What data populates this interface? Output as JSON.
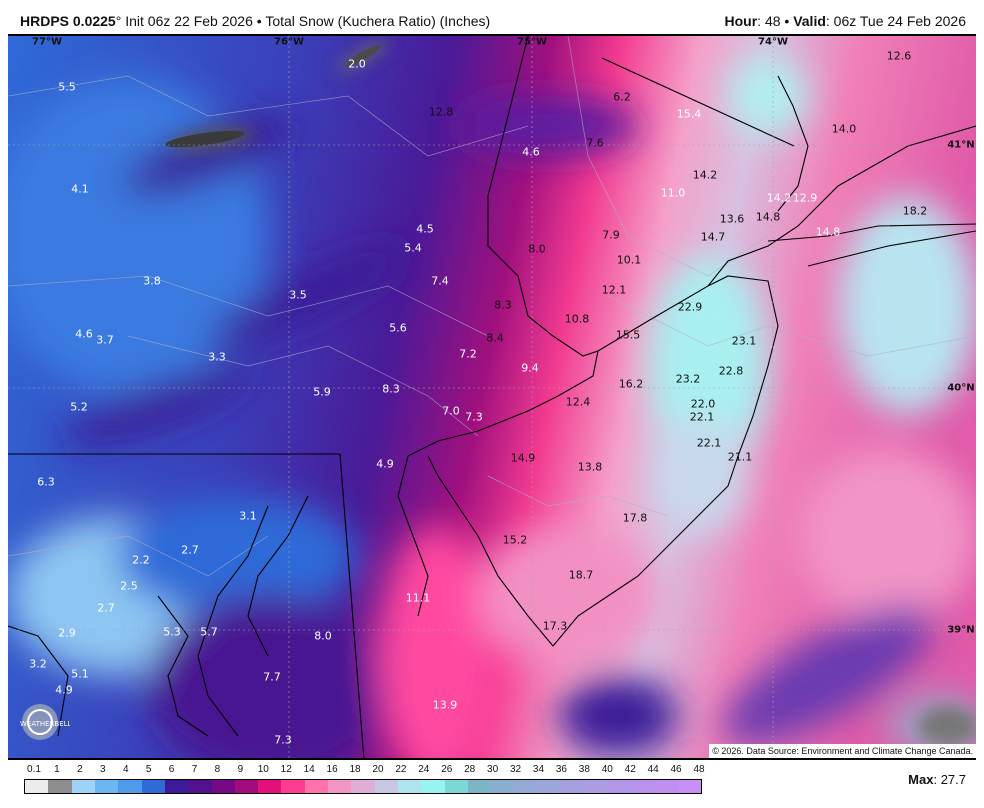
{
  "header": {
    "model": "HRDPS 0.0225",
    "degree": "°",
    "init": "Init 06z 22 Feb 2026",
    "sep": "•",
    "product": "Total Snow (Kuchera Ratio) (Inches)",
    "hour_label": "Hour",
    "hour": "48",
    "valid_label": "Valid",
    "valid": "06z Tue 24 Feb 2026"
  },
  "map": {
    "longitudes": [
      "77°W",
      "76°W",
      "75°W",
      "74°W"
    ],
    "latitudes": [
      "41°N",
      "40°N",
      "39°N"
    ],
    "point_values": [
      "2.0",
      "5.5",
      "12.8",
      "6.2",
      "15.4",
      "12.6",
      "14.0",
      "4.6",
      "7.6",
      "14.2",
      "4.1",
      "11.0",
      "14.2",
      "12.9",
      "18.2",
      "13.6",
      "14.8",
      "4.5",
      "7.9",
      "14.7",
      "14.8",
      "5.4",
      "8.0",
      "10.1",
      "3.8",
      "7.4",
      "12.1",
      "3.5",
      "8.3",
      "22.9",
      "5.6",
      "10.8",
      "4.6",
      "3.7",
      "15.5",
      "23.1",
      "8.4",
      "3.3",
      "7.2",
      "9.4",
      "22.8",
      "16.2",
      "23.2",
      "5.9",
      "8.3",
      "12.4",
      "22.0",
      "5.2",
      "7.0",
      "7.3",
      "22.1",
      "22.1",
      "21.1",
      "14.9",
      "13.8",
      "4.9",
      "6.3",
      "3.1",
      "17.8",
      "15.2",
      "2.2",
      "2.7",
      "2.5",
      "18.7",
      "11.1",
      "2.7",
      "17.3",
      "2.9",
      "5.3",
      "5.7",
      "8.0",
      "3.2",
      "5.1",
      "7.7",
      "4.9",
      "13.9",
      "7.3"
    ],
    "copyright": "© 2026. Data Source: Environment and Climate Change Canada.",
    "logo": "WeatherBELL"
  },
  "colorbar": {
    "labels": [
      "0.1",
      "1",
      "2",
      "3",
      "4",
      "5",
      "6",
      "7",
      "8",
      "9",
      "10",
      "12",
      "14",
      "16",
      "18",
      "20",
      "22",
      "24",
      "26",
      "28",
      "30",
      "32",
      "34",
      "36",
      "38",
      "40",
      "42",
      "44",
      "46",
      "48"
    ],
    "colors": [
      "#ececec",
      "#8c8c8c",
      "#9fd2f7",
      "#6cb6f2",
      "#4c9aea",
      "#2e6bd6",
      "#3a1a98",
      "#52108e",
      "#760a86",
      "#a00c7c",
      "#e4107a",
      "#ff3c92",
      "#ff72aa",
      "#f296c6",
      "#deaed6",
      "#c8c8e4",
      "#b0e2f0",
      "#98f4f0",
      "#7cd8d4",
      "#7ab6c6",
      "#8aaed0",
      "#94aad4",
      "#9ca6da",
      "#a4a0de",
      "#ac9ce2",
      "#b296e8",
      "#b892ec",
      "#c090f0",
      "#c890f4"
    ]
  },
  "max": {
    "label": "Max",
    "value": "27.7"
  }
}
